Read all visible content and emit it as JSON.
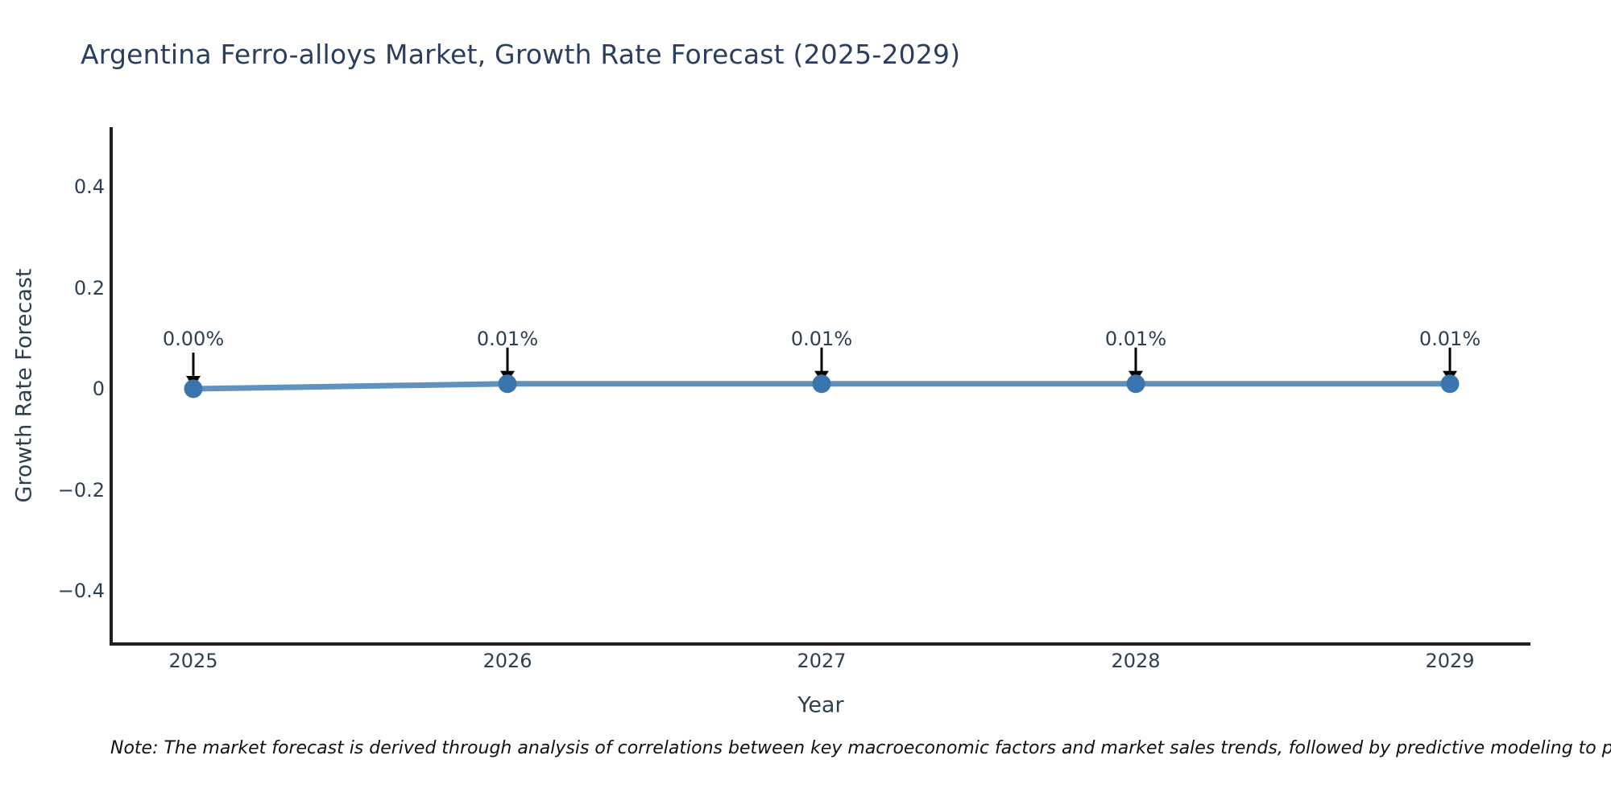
{
  "page": {
    "background": "#ffffff"
  },
  "chart_data": {
    "type": "line",
    "title": "Argentina Ferro-alloys Market, Growth Rate Forecast (2025-2029)",
    "xlabel": "Year",
    "ylabel": "Growth Rate Forecast",
    "categories": [
      "2025",
      "2026",
      "2027",
      "2028",
      "2029"
    ],
    "series": [
      {
        "name": "Growth Rate Forecast",
        "values": [
          0.0,
          0.01,
          0.01,
          0.01,
          0.01
        ],
        "unit": "%"
      }
    ],
    "point_labels": [
      "0.00%",
      "0.01%",
      "0.01%",
      "0.01%",
      "0.01%"
    ],
    "yticks": [
      {
        "value": 0.4,
        "label": "0.4"
      },
      {
        "value": 0.2,
        "label": "0.2"
      },
      {
        "value": 0,
        "label": "0"
      },
      {
        "value": -0.2,
        "label": "−0.2"
      },
      {
        "value": -0.4,
        "label": "−0.4"
      }
    ],
    "ylim": [
      -0.5,
      0.5
    ],
    "grid": false,
    "legend": "none",
    "colors": {
      "line": "#4e86b8",
      "marker": "#3a76ad",
      "arrow": "#000000",
      "axis_line": "#1f1f1f",
      "title_text": "#2a3f5f",
      "axis_text": "#2e3f54",
      "note_text": "#111111"
    }
  },
  "note": {
    "text": "Note: The market forecast is derived through analysis of correlations between key macroeconomic factors and market sales trends, followed by predictive modeling to project future sa"
  }
}
